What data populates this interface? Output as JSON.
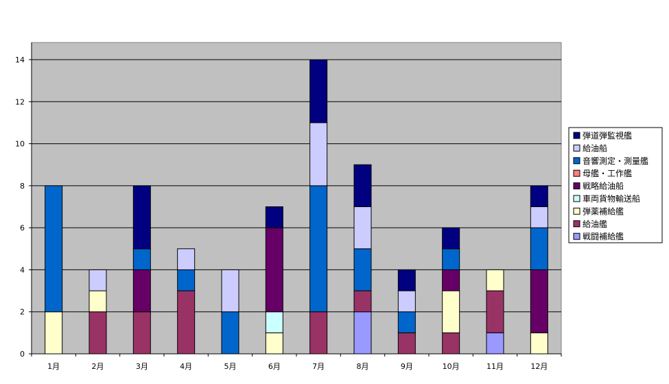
{
  "chart_data": {
    "type": "bar",
    "stacked": true,
    "categories": [
      "1月",
      "2月",
      "3月",
      "4月",
      "5月",
      "6月",
      "7月",
      "8月",
      "9月",
      "10月",
      "11月",
      "12月"
    ],
    "ylim": [
      0,
      14
    ],
    "yticks": [
      "0",
      "2",
      "4",
      "6",
      "8",
      "10",
      "12",
      "14"
    ],
    "grid": true,
    "legend_position": "right",
    "series": [
      {
        "name": "戦闘補給艦",
        "color": "#9999ff",
        "values": [
          0,
          0,
          0,
          0,
          0,
          0,
          0,
          2,
          0,
          0,
          1,
          0
        ]
      },
      {
        "name": "給油艦",
        "color": "#993366",
        "values": [
          0,
          2,
          2,
          3,
          0,
          0,
          2,
          1,
          1,
          1,
          2,
          0
        ]
      },
      {
        "name": "弾薬補給艦",
        "color": "#ffffcc",
        "values": [
          2,
          1,
          0,
          0,
          0,
          1,
          0,
          0,
          0,
          2,
          1,
          1
        ]
      },
      {
        "name": "車両貨物輸送船",
        "color": "#ccffff",
        "values": [
          0,
          0,
          0,
          0,
          0,
          1,
          0,
          0,
          0,
          0,
          0,
          0
        ]
      },
      {
        "name": "戦略給油船",
        "color": "#660066",
        "values": [
          0,
          0,
          2,
          0,
          0,
          4,
          0,
          0,
          0,
          1,
          0,
          3
        ]
      },
      {
        "name": "母艦・工作艦",
        "color": "#ff8080",
        "values": [
          0,
          0,
          0,
          0,
          0,
          0,
          0,
          0,
          0,
          0,
          0,
          0
        ]
      },
      {
        "name": "音響測定・測量艦",
        "color": "#0066cc",
        "values": [
          6,
          0,
          1,
          1,
          2,
          0,
          6,
          2,
          1,
          1,
          0,
          2
        ]
      },
      {
        "name": "給油船",
        "color": "#ccccff",
        "values": [
          0,
          1,
          0,
          1,
          2,
          0,
          3,
          2,
          1,
          0,
          0,
          1
        ]
      },
      {
        "name": "弾道弾監視艦",
        "color": "#000080",
        "values": [
          0,
          0,
          3,
          0,
          0,
          1,
          3,
          2,
          1,
          1,
          0,
          1
        ]
      }
    ]
  }
}
